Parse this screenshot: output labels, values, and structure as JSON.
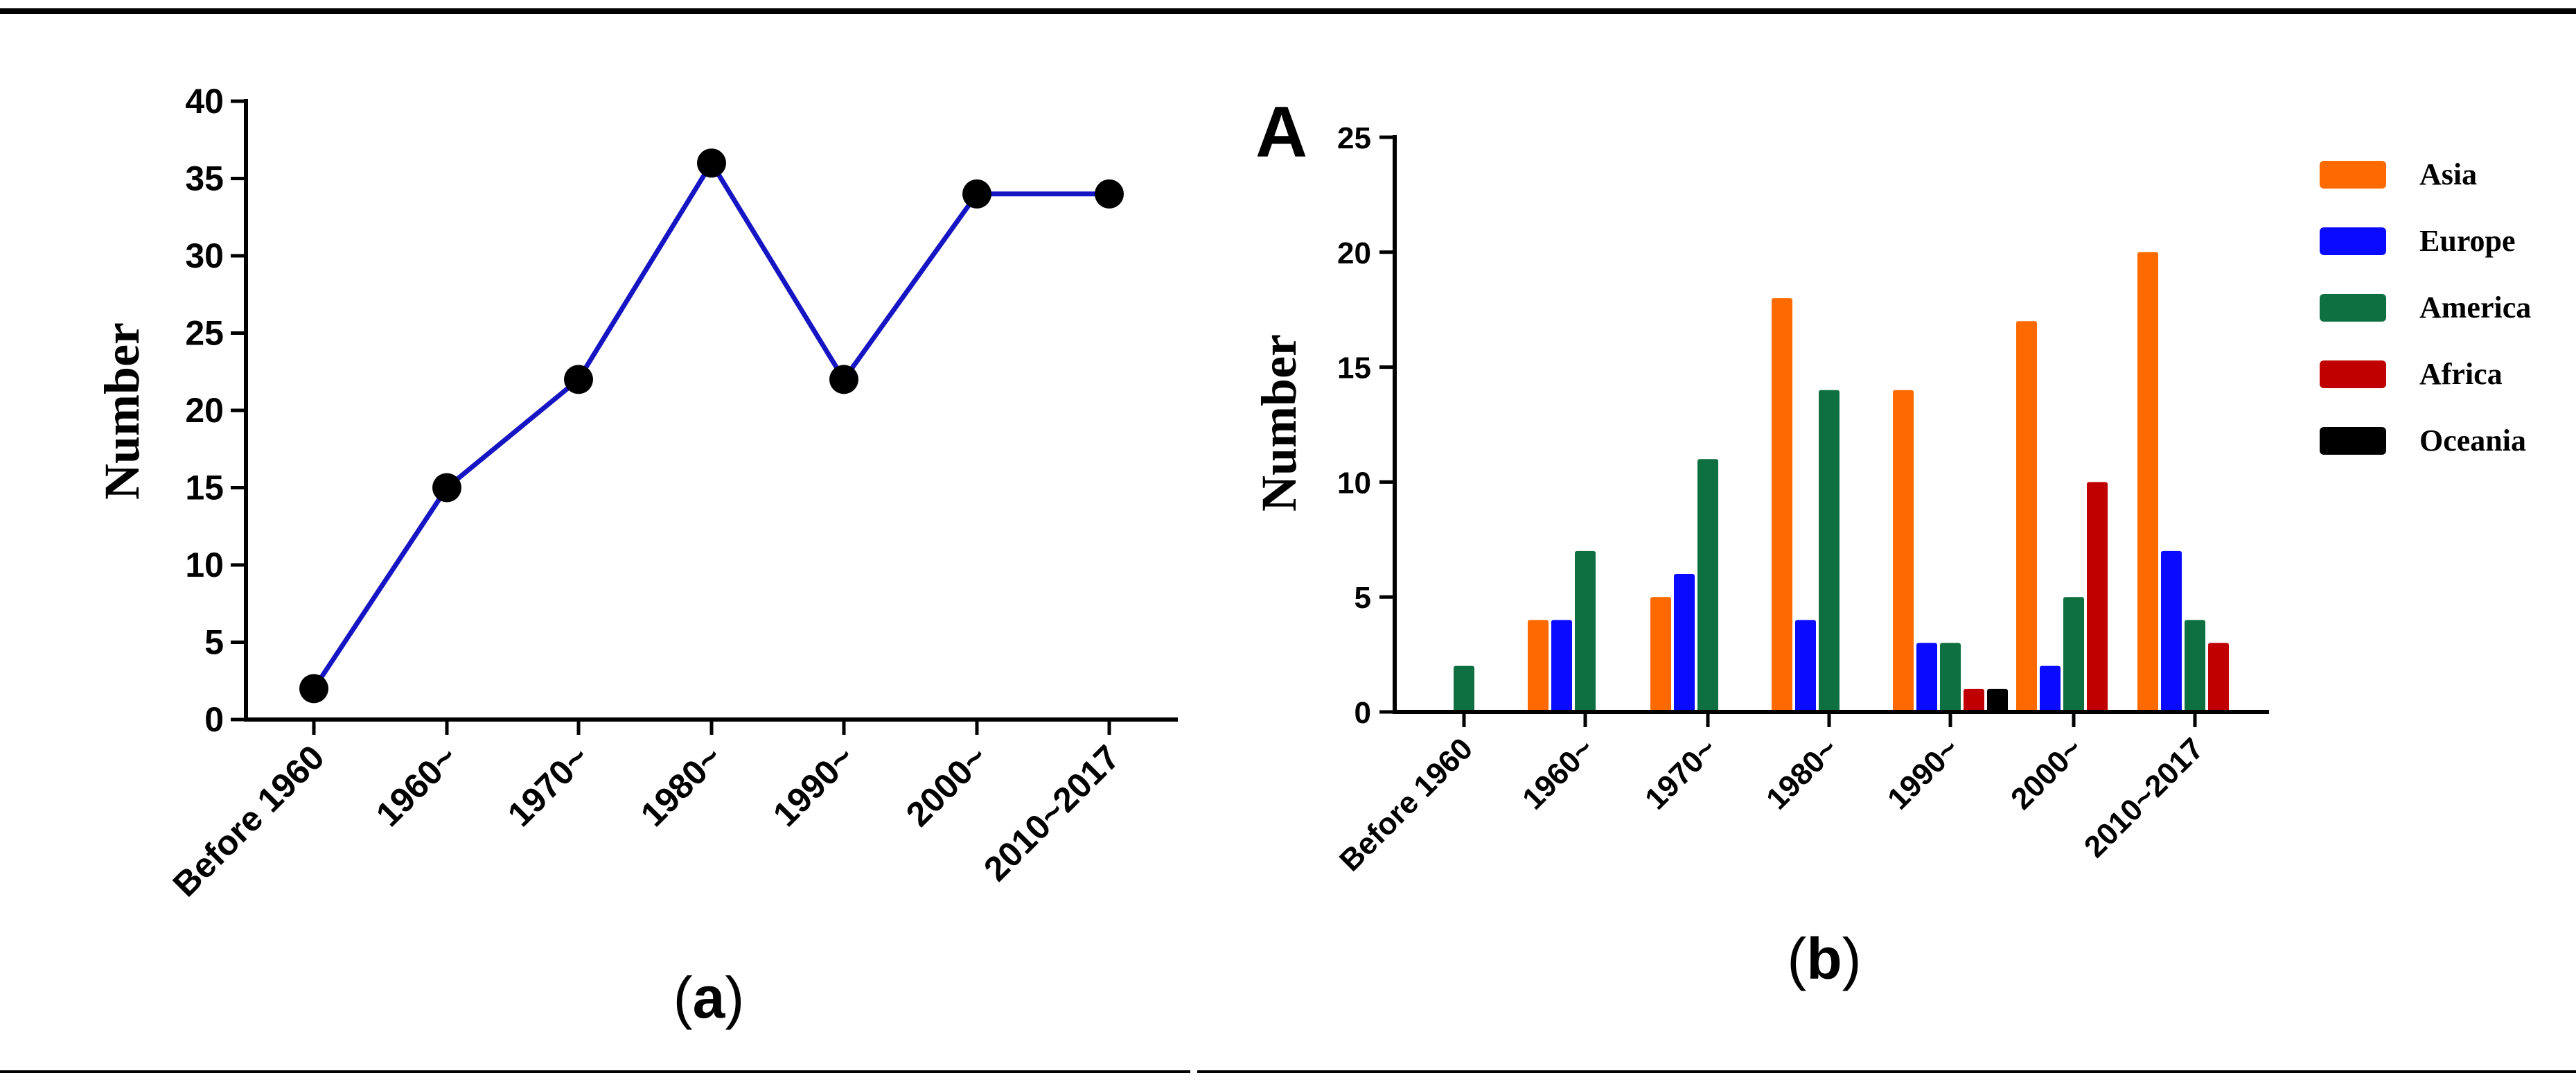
{
  "chart_data": [
    {
      "type": "line",
      "panel": "a",
      "caption_open": "(",
      "caption_letter": "a",
      "caption_close": ")",
      "ylabel": "Number",
      "categories": [
        "Before 1960",
        "1960~",
        "1970~",
        "1980~",
        "1990~",
        "2000~",
        "2010~2017"
      ],
      "values": [
        2,
        15,
        22,
        36,
        22,
        34,
        34
      ],
      "ylim": [
        0,
        40
      ],
      "yticks": [
        0,
        5,
        10,
        15,
        20,
        25,
        30,
        35,
        40
      ],
      "line_color": "#1515c4",
      "marker_color": "#000000"
    },
    {
      "type": "bar",
      "panel": "b",
      "panel_letter": "A",
      "caption_open": "(",
      "caption_letter": "b",
      "caption_close": ")",
      "ylabel": "Number",
      "categories": [
        "Before 1960",
        "1960~",
        "1970~",
        "1980~",
        "1990~",
        "2000~",
        "2010~2017"
      ],
      "ylim": [
        0,
        25
      ],
      "yticks": [
        0,
        5,
        10,
        15,
        20,
        25
      ],
      "series": [
        {
          "name": "Asia",
          "color": "#ff6a00",
          "values": [
            0,
            4,
            5,
            18,
            14,
            17,
            20
          ]
        },
        {
          "name": "Europe",
          "color": "#0a0aff",
          "values": [
            0,
            4,
            6,
            4,
            3,
            2,
            7
          ]
        },
        {
          "name": "America",
          "color": "#0e7040",
          "values": [
            2,
            7,
            11,
            14,
            3,
            5,
            4
          ]
        },
        {
          "name": "Africa",
          "color": "#c00000",
          "values": [
            0,
            0,
            0,
            0,
            1,
            10,
            3
          ]
        },
        {
          "name": "Oceania",
          "color": "#000000",
          "values": [
            0,
            0,
            0,
            0,
            1,
            0,
            0
          ]
        }
      ],
      "legend_position": "right"
    }
  ]
}
